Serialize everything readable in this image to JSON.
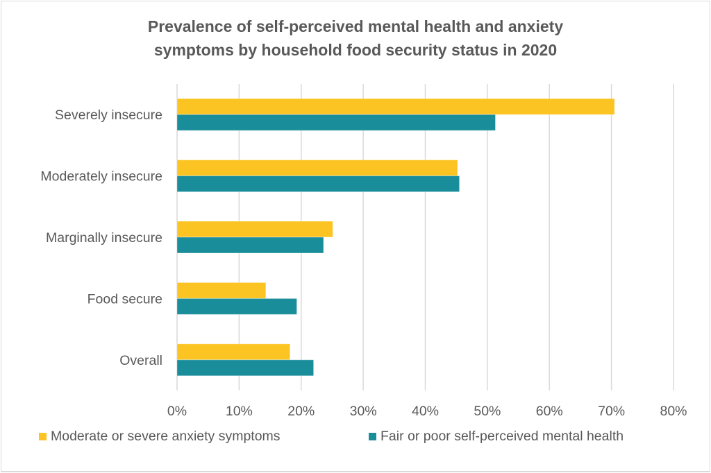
{
  "chart_data": {
    "type": "bar",
    "orientation": "horizontal",
    "title": "Prevalence of self-perceived mental health and anxiety symptoms by household food security status in 2020",
    "title_lines": [
      "Prevalence of self-perceived mental health and anxiety",
      "symptoms by household food security status in 2020"
    ],
    "categories": [
      "Severely insecure",
      "Moderately insecure",
      "Marginally insecure",
      "Food secure",
      "Overall"
    ],
    "series": [
      {
        "name": "Moderate or severe anxiety symptoms",
        "color": "#FCC423",
        "values": [
          70.5,
          45.2,
          25.1,
          14.3,
          18.2
        ]
      },
      {
        "name": "Fair or poor self-perceived mental health",
        "color": "#1A8D9A",
        "values": [
          51.3,
          45.5,
          23.6,
          19.3,
          22.0
        ]
      }
    ],
    "xlabel": "",
    "ylabel": "",
    "xlim": [
      0,
      80
    ],
    "x_ticks": [
      0,
      10,
      20,
      30,
      40,
      50,
      60,
      70,
      80
    ],
    "x_tick_labels": [
      "0%",
      "10%",
      "20%",
      "30%",
      "40%",
      "50%",
      "60%",
      "70%",
      "80%"
    ],
    "grid": true,
    "legend_position": "bottom"
  }
}
